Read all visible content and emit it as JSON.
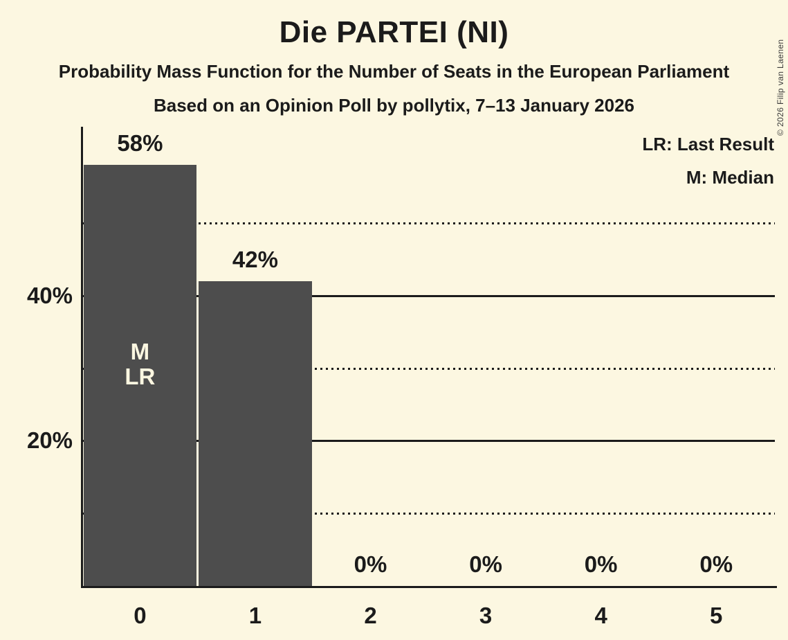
{
  "header": {
    "title": "Die PARTEI (NI)",
    "subtitle1": "Probability Mass Function for the Number of Seats in the European Parliament",
    "subtitle2": "Based on an Opinion Poll by pollytix, 7–13 January 2026",
    "copyright": "© 2026 Filip van Laenen"
  },
  "legend": {
    "last_result": "LR: Last Result",
    "median": "M: Median"
  },
  "colors": {
    "background": "#FCF7E1",
    "bar": "#4D4D4D",
    "text": "#1B1B1B",
    "bar_label": "#FCF7E1"
  },
  "chart_data": {
    "type": "bar",
    "title": "Die PARTEI (NI)",
    "categories": [
      "0",
      "1",
      "2",
      "3",
      "4",
      "5"
    ],
    "values": [
      58,
      42,
      0,
      0,
      0,
      0
    ],
    "value_labels": [
      "58%",
      "42%",
      "0%",
      "0%",
      "0%",
      "0%"
    ],
    "xlabel": "",
    "ylabel": "",
    "ylim": [
      0,
      63
    ],
    "grid": "horizontal",
    "legend_position": "top-right",
    "yticks": [
      {
        "value": 20,
        "label": "20%"
      },
      {
        "value": 40,
        "label": "40%"
      }
    ],
    "gridlines": [
      {
        "value": 10,
        "style": "dotted"
      },
      {
        "value": 20,
        "style": "solid"
      },
      {
        "value": 30,
        "style": "dotted"
      },
      {
        "value": 40,
        "style": "solid"
      },
      {
        "value": 50,
        "style": "dotted"
      }
    ],
    "bar_annotations": [
      {
        "category": "0",
        "lines": [
          "M",
          "LR"
        ]
      }
    ],
    "median_seats": "0",
    "last_result_seats": "0"
  }
}
